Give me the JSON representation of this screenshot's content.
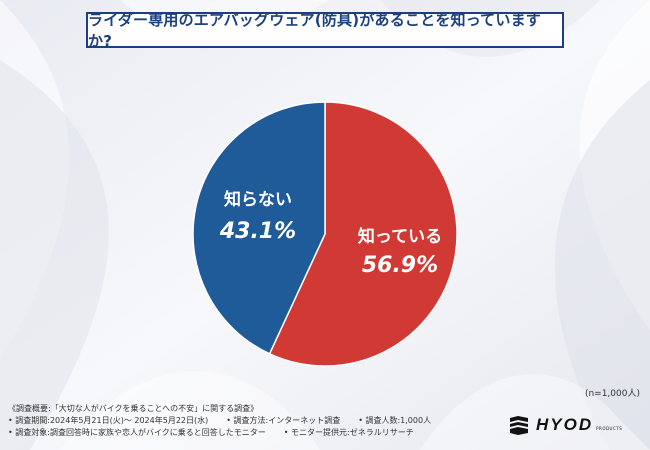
{
  "title": "ライダー専用のエアバッグウェア(防具)があることを知っていますか?",
  "chart_data": {
    "type": "pie",
    "slices": [
      {
        "label": "知っている",
        "value": 56.9,
        "display": "56.9%",
        "color": "#d13a34"
      },
      {
        "label": "知らない",
        "value": 43.1,
        "display": "43.1%",
        "color": "#1f5b99"
      }
    ]
  },
  "sample_note": "(n=1,000人)",
  "footer": {
    "line1": "《調査概要:「大切な人がバイクを乗ることへの不安」に関する調査》",
    "period": "• 調査期間:2024年5月21日(火)～ 2024年5月22日(水)",
    "method": "• 調査方法:インターネット調査",
    "people": "• 調査人数:1,000人",
    "target": "• 調査対象:調査回答時に家族や恋人がバイクに乗ると回答したモニター",
    "provider": "• モニター提供元:ゼネラルリサーチ"
  },
  "logo": {
    "text": "HYOD",
    "sub": "PRODUCTS"
  }
}
